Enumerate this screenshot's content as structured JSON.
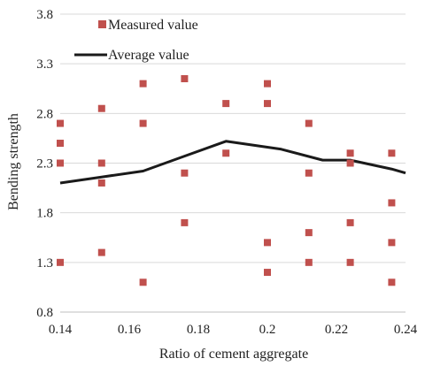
{
  "chart_data": {
    "type": "scatter",
    "xlabel": "Ratio of cement aggregate",
    "ylabel": "Bending strength",
    "xlim": [
      0.14,
      0.24
    ],
    "ylim": [
      0.8,
      3.8
    ],
    "xticks": [
      "0.14",
      "0.16",
      "0.18",
      "0.2",
      "0.22",
      "0.24"
    ],
    "yticks": [
      "0.8",
      "1.3",
      "1.8",
      "2.3",
      "2.8",
      "3.3",
      "3.8"
    ],
    "grid": "horizontal",
    "legend_position": "top-left",
    "series": [
      {
        "name": "Measured value",
        "kind": "scatter",
        "color": "#c0504d",
        "x": [
          0.14,
          0.14,
          0.14,
          0.14,
          0.152,
          0.152,
          0.152,
          0.152,
          0.164,
          0.164,
          0.164,
          0.176,
          0.176,
          0.176,
          0.188,
          0.188,
          0.2,
          0.2,
          0.2,
          0.2,
          0.212,
          0.212,
          0.212,
          0.212,
          0.224,
          0.224,
          0.224,
          0.224,
          0.236,
          0.236,
          0.236,
          0.236
        ],
        "y": [
          2.7,
          2.5,
          2.3,
          1.3,
          2.85,
          2.3,
          2.1,
          1.4,
          3.1,
          2.7,
          1.1,
          3.15,
          2.2,
          1.7,
          2.9,
          2.4,
          3.1,
          2.9,
          1.5,
          1.2,
          2.7,
          2.2,
          1.6,
          1.3,
          2.4,
          2.3,
          1.7,
          1.3,
          2.4,
          1.9,
          1.5,
          1.1
        ]
      },
      {
        "name": "Average value",
        "kind": "line",
        "color": "#1a1a1a",
        "x": [
          0.14,
          0.152,
          0.164,
          0.176,
          0.188,
          0.2,
          0.204,
          0.216,
          0.224,
          0.236,
          0.24
        ],
        "y": [
          2.1,
          2.16,
          2.22,
          2.37,
          2.52,
          2.46,
          2.44,
          2.33,
          2.33,
          2.24,
          2.2
        ]
      }
    ]
  }
}
